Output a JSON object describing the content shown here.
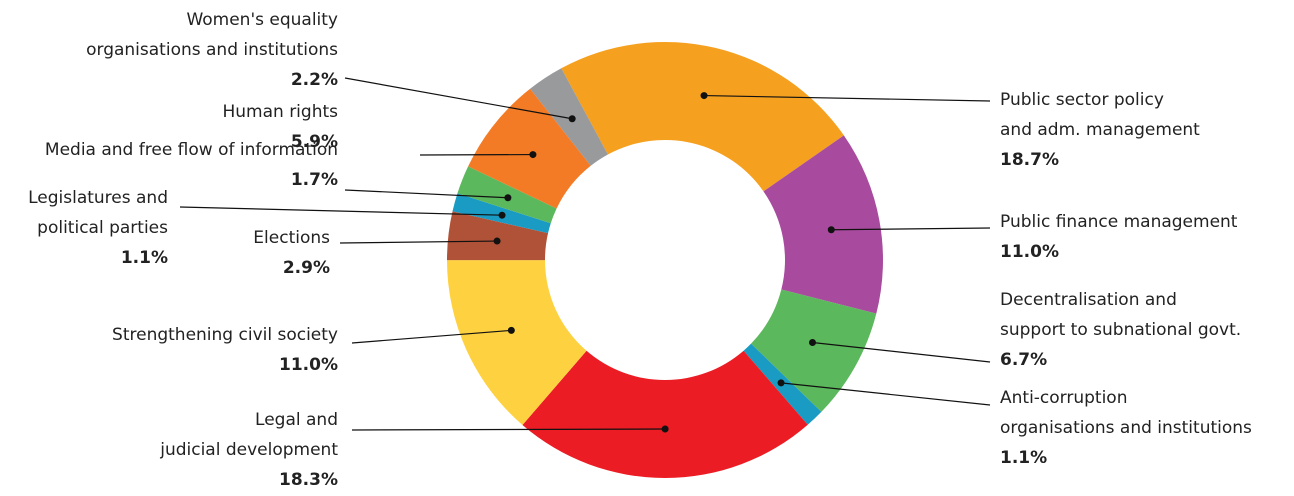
{
  "chart_data": {
    "type": "donut",
    "categories": [
      [
        "Public sector policy",
        "and adm. management"
      ],
      [
        "Public finance management"
      ],
      [
        "Decentralisation and",
        "support to subnational govt."
      ],
      [
        "Anti-corruption",
        "organisations and institutions"
      ],
      [
        "Legal and",
        "judicial development"
      ],
      [
        "Strengthening civil society"
      ],
      [
        "Elections"
      ],
      [
        "Legislatures and",
        "political parties"
      ],
      [
        "Media and free flow of information"
      ],
      [
        "Human rights"
      ],
      [
        "Women's equality",
        "organisations and institutions"
      ]
    ],
    "values": [
      18.7,
      11.0,
      6.7,
      1.1,
      18.3,
      11.0,
      2.9,
      1.1,
      1.7,
      5.9,
      2.2
    ],
    "value_labels": [
      "18.7%",
      "11.0%",
      "6.7%",
      "1.1%",
      "18.3%",
      "11.0%",
      "2.9%",
      "1.1%",
      "1.7%",
      "5.9%",
      "2.2%"
    ],
    "colors": [
      "#f6a01f",
      "#a84b9e",
      "#5cb85c",
      "#1a9bc4",
      "#ec1c24",
      "#fdd13f",
      "#b05237",
      "#1a9bc4",
      "#5cb85c",
      "#f47b26",
      "#999a9c"
    ]
  }
}
